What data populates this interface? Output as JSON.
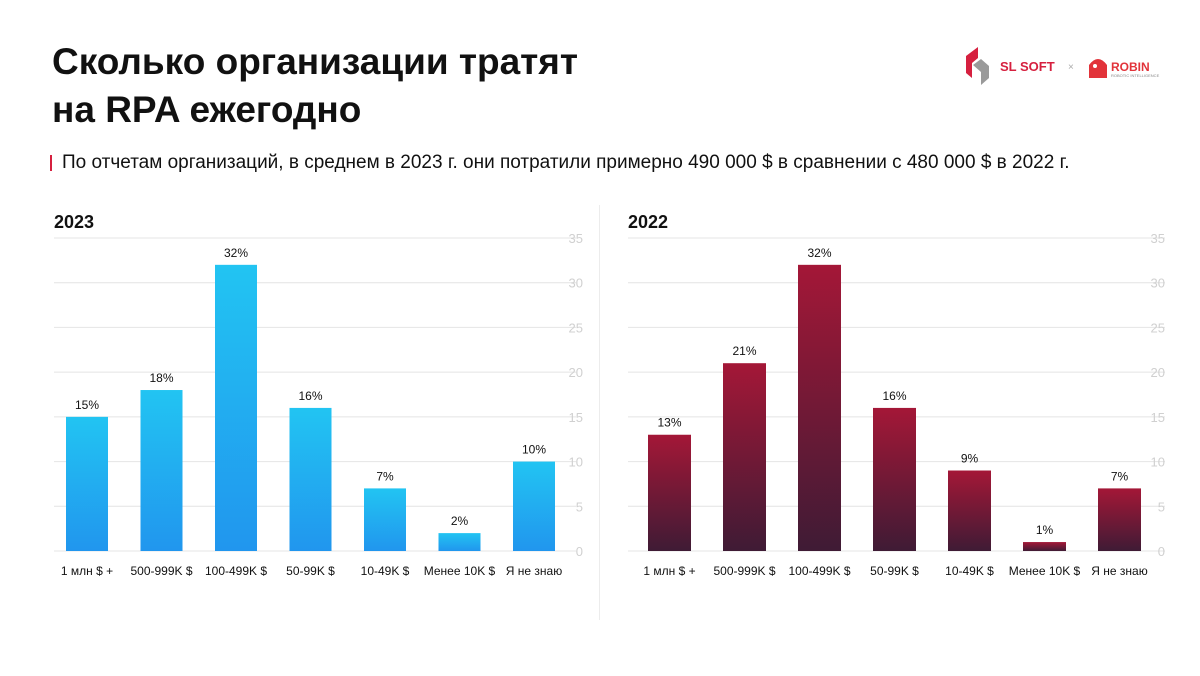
{
  "header": {
    "title_line1": "Сколько организации тратят",
    "title_line2": "на RPA ежегодно",
    "subtitle": "По отчетам организаций, в среднем в 2023 г. они потратили примерно 490 000 $ в сравнении с 480 000 $ в 2022 г."
  },
  "logos": {
    "sl_soft": "SL SOFT",
    "separator": "×",
    "robin": "ROBIN",
    "robin_tagline": "ROBOTIC INTELLIGENCE"
  },
  "colors": {
    "accent_red": "#d6203f",
    "blue_top": "#22c4f2",
    "blue_bottom": "#2196ee",
    "red_top": "#a41737",
    "red_bottom": "#3f1b35",
    "grid": "#e4e4e4",
    "axis_text": "#d0d0d0"
  },
  "chart_data": [
    {
      "type": "bar",
      "title": "2023",
      "categories": [
        "1 млн $ +",
        "500-999K $",
        "100-499K $",
        "50-99K $",
        "10-49K $",
        "Менее 10K $",
        "Я не знаю"
      ],
      "values": [
        15,
        18,
        32,
        16,
        7,
        2,
        10
      ],
      "data_labels": [
        "15%",
        "18%",
        "32%",
        "16%",
        "7%",
        "2%",
        "10%"
      ],
      "yticks": [
        0,
        5,
        10,
        15,
        20,
        25,
        30,
        35
      ],
      "ylim": [
        0,
        35
      ],
      "y_axis_side": "right",
      "grid": true,
      "palette": "blue"
    },
    {
      "type": "bar",
      "title": "2022",
      "categories": [
        "1 млн $ +",
        "500-999K $",
        "100-499K $",
        "50-99K $",
        "10-49K $",
        "Менее 10K $",
        "Я не знаю"
      ],
      "values": [
        13,
        21,
        32,
        16,
        9,
        1,
        7
      ],
      "data_labels": [
        "13%",
        "21%",
        "32%",
        "16%",
        "9%",
        "1%",
        "7%"
      ],
      "yticks": [
        0,
        5,
        10,
        15,
        20,
        25,
        30,
        35
      ],
      "ylim": [
        0,
        35
      ],
      "y_axis_side": "right",
      "grid": true,
      "palette": "red"
    }
  ]
}
